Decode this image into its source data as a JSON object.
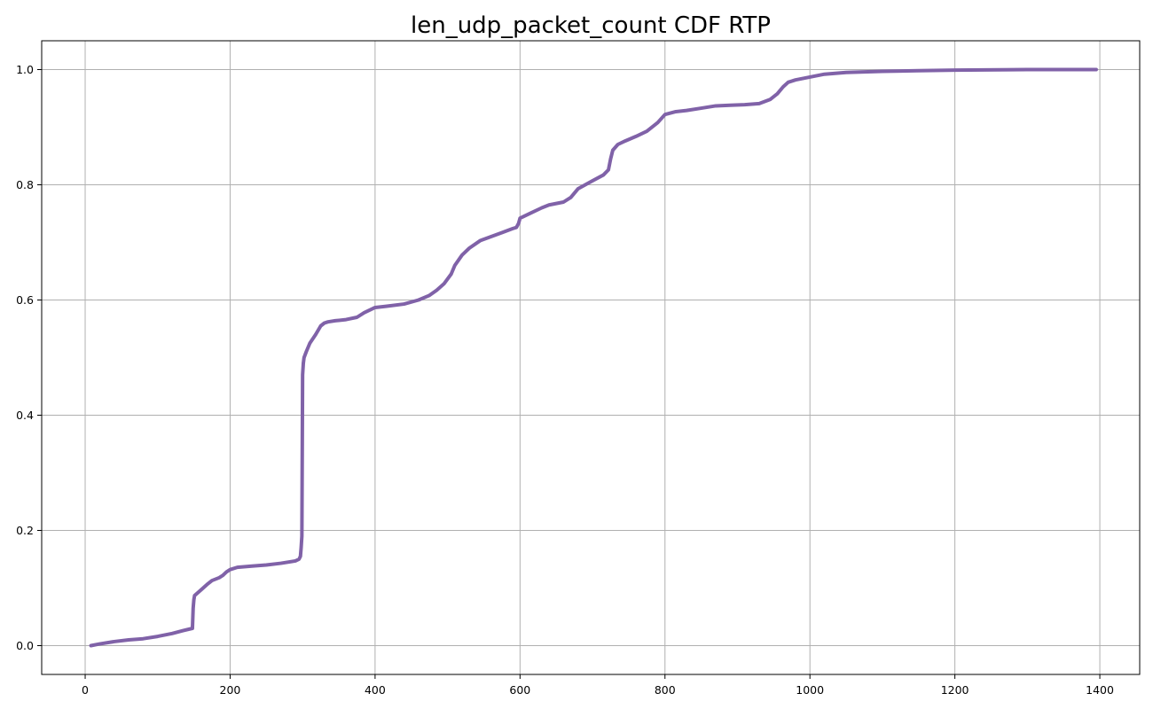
{
  "chart_data": {
    "type": "line",
    "title": "len_udp_packet_count CDF RTP",
    "xlabel": "",
    "ylabel": "",
    "xlim": [
      -60,
      1455
    ],
    "ylim": [
      -0.05,
      1.05
    ],
    "x_ticks": [
      0,
      200,
      400,
      600,
      800,
      1000,
      1200,
      1400
    ],
    "x_tick_labels": [
      "0",
      "200",
      "400",
      "600",
      "800",
      "1000",
      "1200",
      "1400"
    ],
    "y_ticks": [
      0.0,
      0.2,
      0.4,
      0.6,
      0.8,
      1.0
    ],
    "y_tick_labels": [
      "0.0",
      "0.2",
      "0.4",
      "0.6",
      "0.8",
      "1.0"
    ],
    "grid": true,
    "legend": "none",
    "series": [
      {
        "color": "#8062a8",
        "x": [
          8,
          20,
          40,
          60,
          80,
          100,
          120,
          135,
          148,
          149,
          150,
          151,
          152,
          160,
          168,
          175,
          185,
          190,
          195,
          200,
          210,
          230,
          250,
          270,
          290,
          295,
          297,
          298,
          299,
          300,
          301,
          302,
          305,
          310,
          318,
          325,
          330,
          335,
          345,
          360,
          375,
          385,
          400,
          415,
          440,
          460,
          475,
          485,
          495,
          505,
          510,
          520,
          530,
          545,
          560,
          575,
          590,
          595,
          598,
          600,
          615,
          630,
          640,
          660,
          670,
          680,
          690,
          700,
          715,
          722,
          725,
          728,
          735,
          745,
          760,
          775,
          790,
          800,
          815,
          830,
          850,
          870,
          890,
          910,
          930,
          945,
          955,
          963,
          970,
          980,
          1000,
          1020,
          1050,
          1100,
          1150,
          1200,
          1300,
          1395
        ],
        "y": [
          0.0,
          0.003,
          0.007,
          0.01,
          0.012,
          0.016,
          0.021,
          0.026,
          0.03,
          0.065,
          0.08,
          0.087,
          0.088,
          0.097,
          0.106,
          0.113,
          0.118,
          0.122,
          0.128,
          0.132,
          0.136,
          0.138,
          0.14,
          0.143,
          0.147,
          0.15,
          0.155,
          0.17,
          0.19,
          0.47,
          0.49,
          0.5,
          0.51,
          0.525,
          0.54,
          0.555,
          0.56,
          0.562,
          0.564,
          0.566,
          0.57,
          0.578,
          0.587,
          0.589,
          0.593,
          0.6,
          0.608,
          0.617,
          0.628,
          0.645,
          0.66,
          0.678,
          0.69,
          0.703,
          0.71,
          0.717,
          0.724,
          0.726,
          0.733,
          0.742,
          0.751,
          0.76,
          0.765,
          0.77,
          0.778,
          0.793,
          0.8,
          0.807,
          0.817,
          0.826,
          0.845,
          0.86,
          0.87,
          0.876,
          0.884,
          0.893,
          0.908,
          0.922,
          0.927,
          0.929,
          0.933,
          0.937,
          0.938,
          0.939,
          0.941,
          0.948,
          0.958,
          0.97,
          0.978,
          0.982,
          0.987,
          0.992,
          0.995,
          0.997,
          0.998,
          0.999,
          1.0,
          1.0
        ]
      }
    ]
  }
}
